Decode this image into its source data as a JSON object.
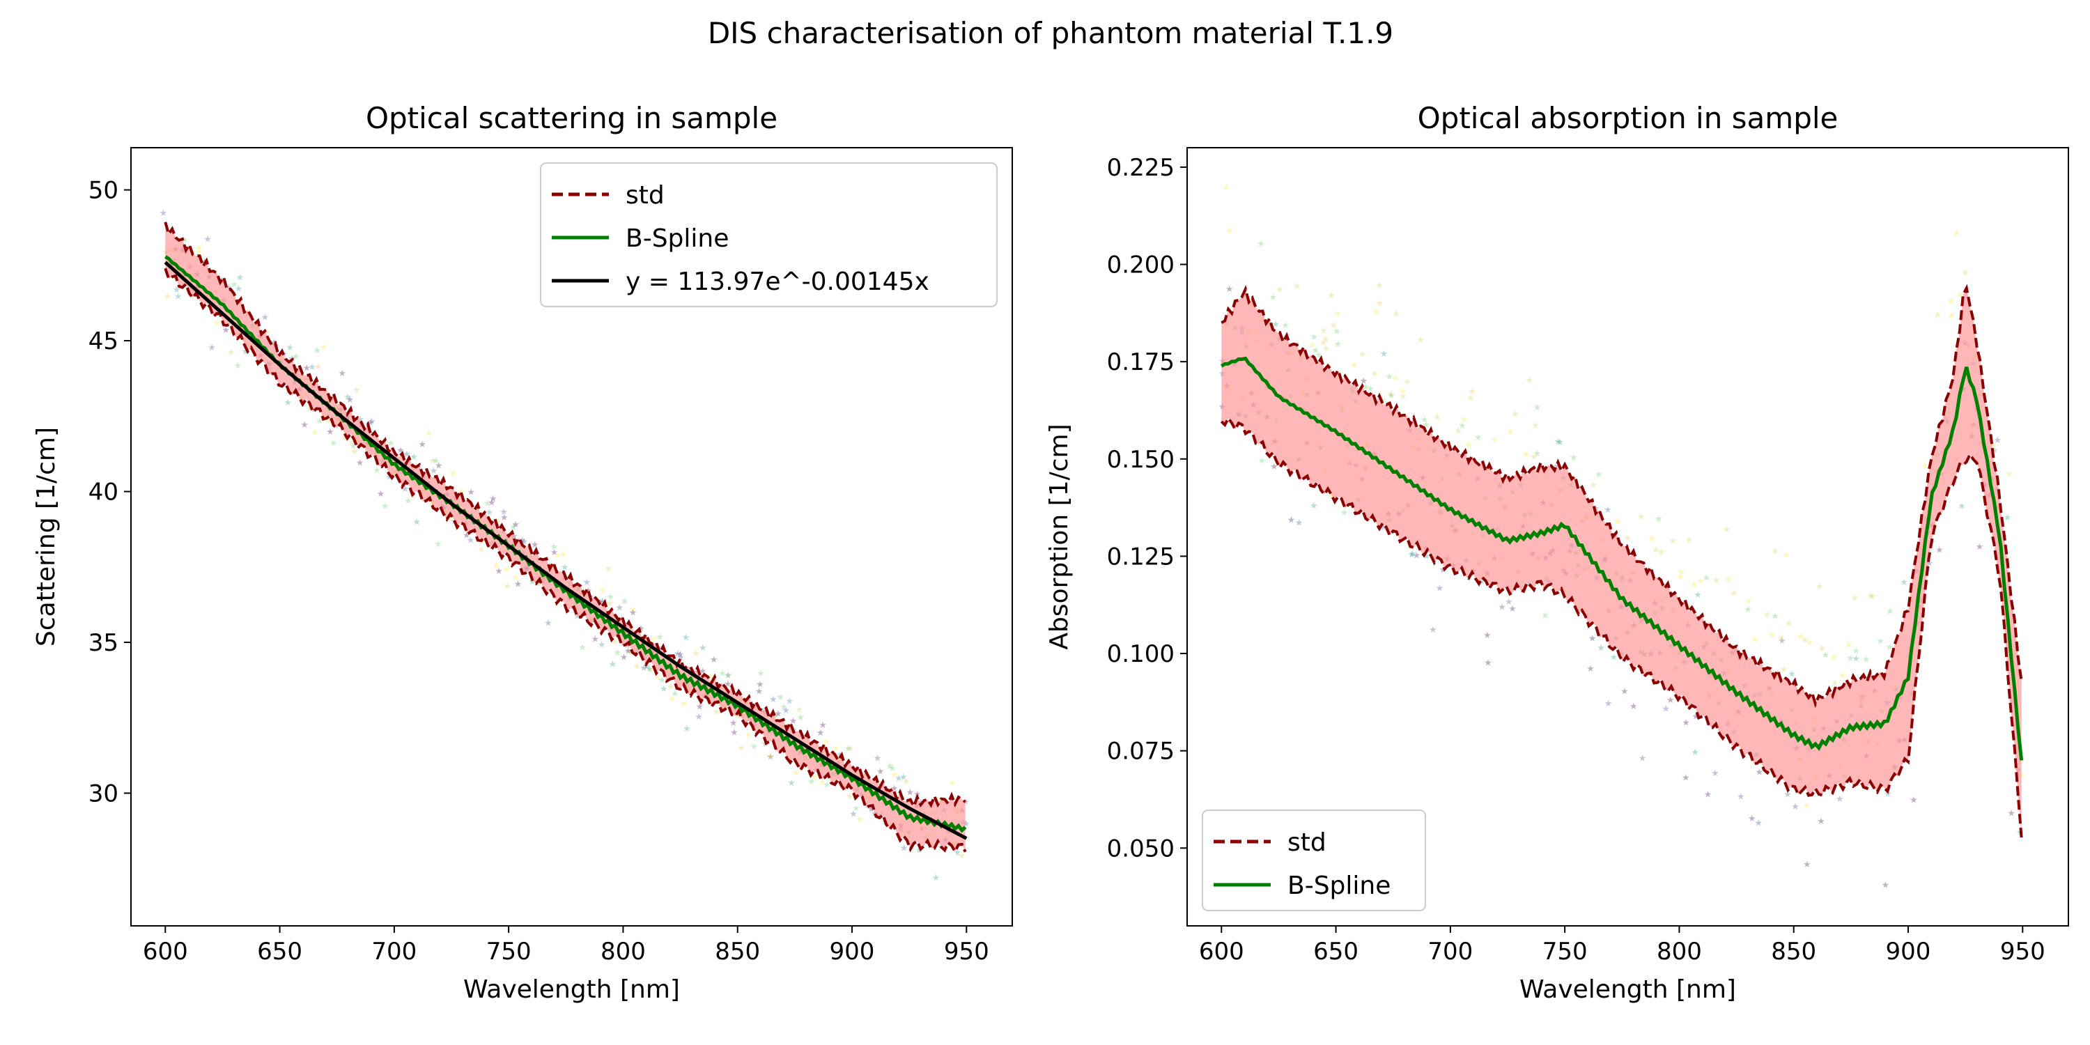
{
  "figure": {
    "suptitle": "DIS characterisation of phantom material T.1.9"
  },
  "colors": {
    "std": "#8b0000",
    "std_band": "#ff9999",
    "spline": "#008000",
    "fit": "#000000",
    "scatter_palette": [
      "#440154",
      "#3b528b",
      "#21918c",
      "#5ec962",
      "#fde725",
      "#e0c84a"
    ]
  },
  "chart_data": [
    {
      "type": "line",
      "title": "Optical scattering in sample",
      "xlabel": "Wavelength [nm]",
      "ylabel": "Scattering [1/cm]",
      "xlim": [
        585,
        970
      ],
      "ylim": [
        25.6,
        51.4
      ],
      "xticks": [
        600,
        650,
        700,
        750,
        800,
        850,
        900,
        950
      ],
      "yticks": [
        30,
        35,
        40,
        45,
        50
      ],
      "legend_position": "upper-right",
      "grid": false,
      "x": [
        600,
        625,
        650,
        675,
        700,
        725,
        750,
        775,
        800,
        825,
        850,
        875,
        900,
        925,
        950
      ],
      "series": [
        {
          "name": "std",
          "style": "dashed-band",
          "upper": [
            48.8,
            47.0,
            44.6,
            43.0,
            41.3,
            40.1,
            38.6,
            37.2,
            35.7,
            34.3,
            33.3,
            32.1,
            30.9,
            29.7,
            29.8
          ],
          "lower": [
            47.3,
            45.7,
            43.6,
            42.2,
            40.5,
            39.1,
            37.8,
            36.2,
            35.0,
            33.5,
            32.6,
            31.0,
            30.1,
            28.3,
            28.2
          ]
        },
        {
          "name": "B-Spline",
          "values": [
            47.8,
            46.2,
            44.2,
            42.6,
            40.9,
            39.6,
            38.2,
            36.7,
            35.3,
            33.9,
            32.9,
            31.6,
            30.5,
            29.2,
            28.8
          ]
        },
        {
          "name": "y = 113.97e^-0.00145x",
          "values": [
            47.6,
            45.9,
            44.2,
            42.6,
            41.1,
            39.6,
            38.2,
            36.8,
            35.5,
            34.2,
            33.0,
            31.8,
            30.6,
            29.5,
            28.5
          ]
        }
      ],
      "scatter_spread": 1.0
    },
    {
      "type": "line",
      "title": "Optical absorption in sample",
      "xlabel": "Wavelength [nm]",
      "ylabel": "Absorption [1/cm]",
      "xlim": [
        585,
        970
      ],
      "ylim": [
        0.03,
        0.23
      ],
      "xticks": [
        600,
        650,
        700,
        750,
        800,
        850,
        900,
        950
      ],
      "yticks": [
        0.05,
        0.075,
        0.1,
        0.125,
        0.15,
        0.175,
        0.2,
        0.225
      ],
      "legend_position": "lower-left",
      "grid": false,
      "x": [
        600,
        610,
        625,
        650,
        675,
        700,
        725,
        740,
        750,
        775,
        800,
        825,
        850,
        860,
        875,
        890,
        900,
        910,
        920,
        925,
        930,
        940,
        950
      ],
      "series": [
        {
          "name": "std",
          "style": "dashed-band",
          "upper": [
            0.185,
            0.193,
            0.182,
            0.172,
            0.163,
            0.153,
            0.145,
            0.148,
            0.148,
            0.128,
            0.114,
            0.101,
            0.092,
            0.088,
            0.093,
            0.095,
            0.112,
            0.15,
            0.172,
            0.196,
            0.18,
            0.14,
            0.09
          ],
          "lower": [
            0.16,
            0.158,
            0.149,
            0.14,
            0.131,
            0.122,
            0.116,
            0.118,
            0.115,
            0.099,
            0.089,
            0.076,
            0.065,
            0.064,
            0.067,
            0.065,
            0.073,
            0.13,
            0.145,
            0.15,
            0.15,
            0.12,
            0.05
          ]
        },
        {
          "name": "B-Spline",
          "values": [
            0.174,
            0.176,
            0.166,
            0.157,
            0.147,
            0.137,
            0.129,
            0.131,
            0.133,
            0.114,
            0.102,
            0.09,
            0.079,
            0.076,
            0.081,
            0.082,
            0.094,
            0.14,
            0.158,
            0.174,
            0.165,
            0.13,
            0.069
          ]
        }
      ],
      "scatter_spread": 0.018
    }
  ]
}
